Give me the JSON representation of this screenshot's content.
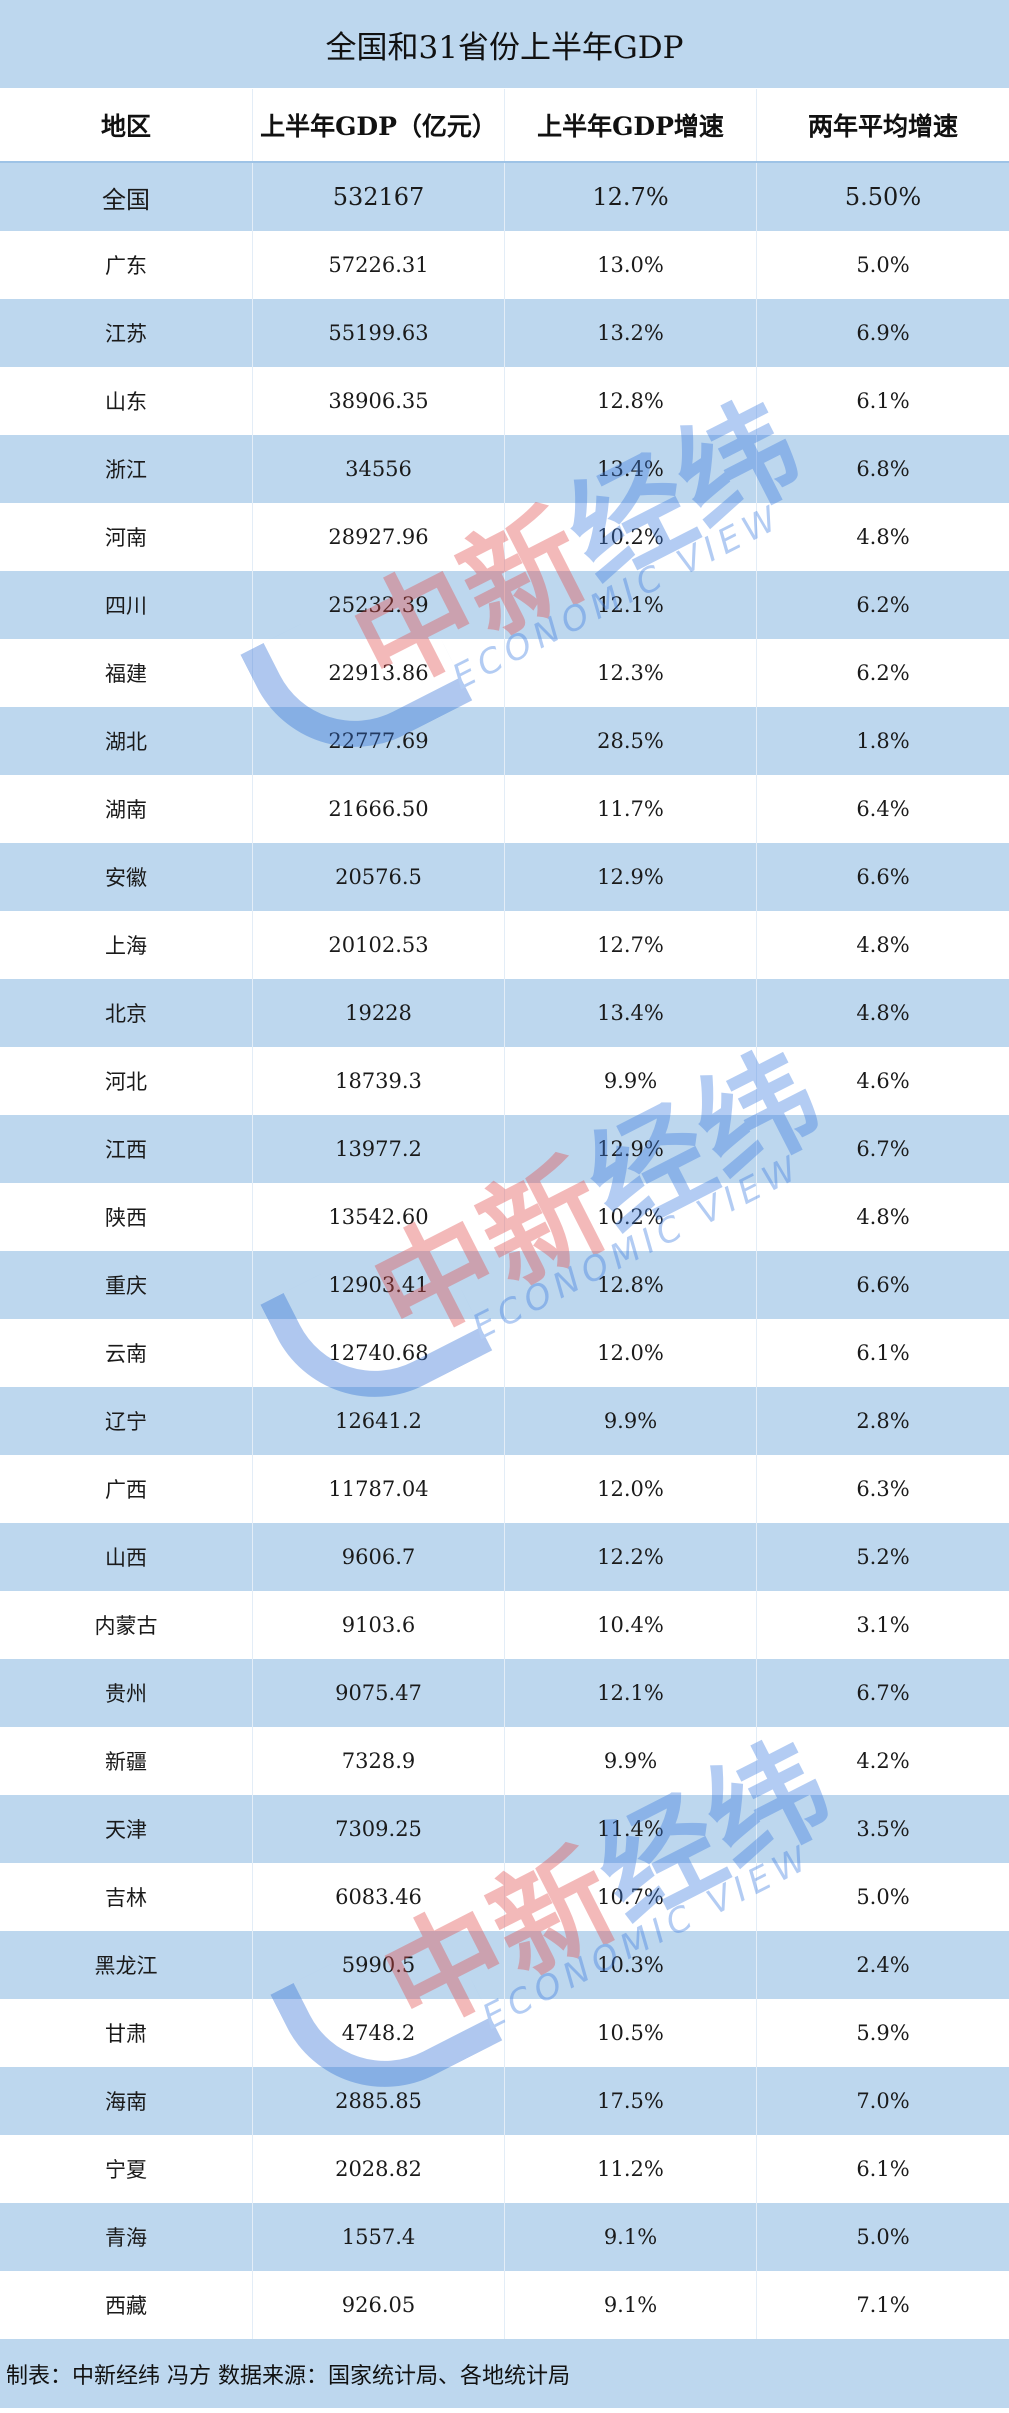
{
  "title": "全国和31省份上半年GDP",
  "headers": [
    "地区",
    "上半年GDP（亿元）",
    "上半年GDP增速",
    "两年平均增速"
  ],
  "rows": [
    [
      "全国",
      "532167",
      "12.7%",
      "5.50%"
    ],
    [
      "广东",
      "57226.31",
      "13.0%",
      "5.0%"
    ],
    [
      "江苏",
      "55199.63",
      "13.2%",
      "6.9%"
    ],
    [
      "山东",
      "38906.35",
      "12.8%",
      "6.1%"
    ],
    [
      "浙江",
      "34556",
      "13.4%",
      "6.8%"
    ],
    [
      "河南",
      "28927.96",
      "10.2%",
      "4.8%"
    ],
    [
      "四川",
      "25232.39",
      "12.1%",
      "6.2%"
    ],
    [
      "福建",
      "22913.86",
      "12.3%",
      "6.2%"
    ],
    [
      "湖北",
      "22777.69",
      "28.5%",
      "1.8%"
    ],
    [
      "湖南",
      "21666.50",
      "11.7%",
      "6.4%"
    ],
    [
      "安徽",
      "20576.5",
      "12.9%",
      "6.6%"
    ],
    [
      "上海",
      "20102.53",
      "12.7%",
      "4.8%"
    ],
    [
      "北京",
      "19228",
      "13.4%",
      "4.8%"
    ],
    [
      "河北",
      "18739.3",
      "9.9%",
      "4.6%"
    ],
    [
      "江西",
      "13977.2",
      "12.9%",
      "6.7%"
    ],
    [
      "陕西",
      "13542.60",
      "10.2%",
      "4.8%"
    ],
    [
      "重庆",
      "12903.41",
      "12.8%",
      "6.6%"
    ],
    [
      "云南",
      "12740.68",
      "12.0%",
      "6.1%"
    ],
    [
      "辽宁",
      "12641.2",
      "9.9%",
      "2.8%"
    ],
    [
      "广西",
      "11787.04",
      "12.0%",
      "6.3%"
    ],
    [
      "山西",
      "9606.7",
      "12.2%",
      "5.2%"
    ],
    [
      "内蒙古",
      "9103.6",
      "10.4%",
      "3.1%"
    ],
    [
      "贵州",
      "9075.47",
      "12.1%",
      "6.7%"
    ],
    [
      "新疆",
      "7328.9",
      "9.9%",
      "4.2%"
    ],
    [
      "天津",
      "7309.25",
      "11.4%",
      "3.5%"
    ],
    [
      "吉林",
      "6083.46",
      "10.7%",
      "5.0%"
    ],
    [
      "黑龙江",
      "5990.5",
      "10.3%",
      "2.4%"
    ],
    [
      "甘肃",
      "4748.2",
      "10.5%",
      "5.9%"
    ],
    [
      "海南",
      "2885.85",
      "17.5%",
      "7.0%"
    ],
    [
      "宁夏",
      "2028.82",
      "11.2%",
      "6.1%"
    ],
    [
      "青海",
      "1557.4",
      "9.1%",
      "5.0%"
    ],
    [
      "西藏",
      "926.05",
      "9.1%",
      "7.1%"
    ]
  ],
  "footer": "制表：中新经纬 冯方 数据来源：国家统计局、各地统计局",
  "watermark": {
    "cn_red": "中新",
    "cn_blue": "经纬",
    "en": "ECONOMIC VIEW"
  },
  "colors": {
    "band": "#bdd7ee",
    "wm_red": "#e24a4a",
    "wm_blue": "#3b7be0"
  }
}
